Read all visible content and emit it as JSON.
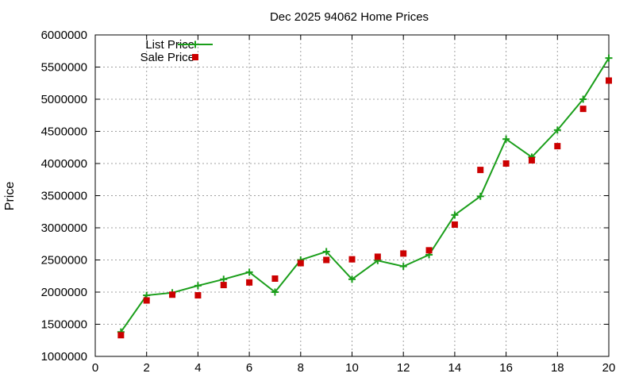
{
  "chart_data": {
    "type": "line",
    "title": "Dec 2025 94062 Home Prices",
    "xlabel": "",
    "ylabel": "Price",
    "xlim": [
      0,
      20
    ],
    "ylim": [
      1000000,
      6000000
    ],
    "x_ticks": [
      0,
      2,
      4,
      6,
      8,
      10,
      12,
      14,
      16,
      18,
      20
    ],
    "x_tick_labels": [
      "0",
      "2",
      "4",
      "6",
      "8",
      "10",
      "12",
      "14",
      "16",
      "18",
      "20"
    ],
    "y_ticks": [
      1000000,
      1500000,
      2000000,
      2500000,
      3000000,
      3500000,
      4000000,
      4500000,
      5000000,
      5500000,
      6000000
    ],
    "y_tick_labels": [
      "1000000",
      "1500000",
      "2000000",
      "2500000",
      "3000000",
      "3500000",
      "4000000",
      "4500000",
      "5000000",
      "5500000",
      "6000000"
    ],
    "grid": true,
    "legend_position": "top-left",
    "series": [
      {
        "name": "List Price",
        "style": "line-with-plus-markers",
        "color": "#1a9e1a",
        "x": [
          1,
          2,
          3,
          4,
          5,
          6,
          7,
          8,
          9,
          10,
          11,
          12,
          13,
          14,
          15,
          16,
          17,
          18,
          19,
          20
        ],
        "values": [
          1380000,
          1950000,
          1990000,
          2100000,
          2200000,
          2310000,
          2000000,
          2500000,
          2630000,
          2200000,
          2490000,
          2400000,
          2580000,
          3200000,
          3490000,
          4380000,
          4100000,
          4520000,
          5000000,
          5640000
        ]
      },
      {
        "name": "Sale Price",
        "style": "square-markers",
        "color": "#cc0000",
        "x": [
          1,
          2,
          3,
          4,
          5,
          6,
          7,
          8,
          9,
          10,
          11,
          12,
          13,
          14,
          15,
          16,
          17,
          18,
          19,
          20
        ],
        "values": [
          1330000,
          1870000,
          1960000,
          1950000,
          2110000,
          2150000,
          2210000,
          2450000,
          2500000,
          2510000,
          2550000,
          2600000,
          2650000,
          3050000,
          3900000,
          4000000,
          4050000,
          4270000,
          4850000,
          5290000
        ]
      }
    ]
  }
}
